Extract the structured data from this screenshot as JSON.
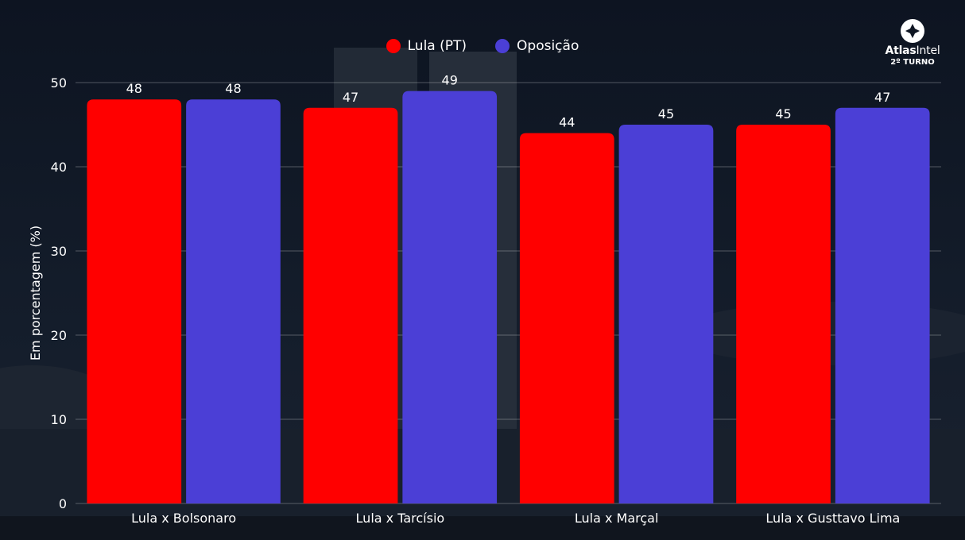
{
  "legend": [
    {
      "label": "Lula (PT)",
      "color": "#ff0000"
    },
    {
      "label": "Oposição",
      "color": "#4b3fd6"
    }
  ],
  "logo": {
    "name_bold": "Atlas",
    "name_light": "Intel",
    "subtitle": "2º TURNO"
  },
  "chart_data": {
    "type": "bar",
    "categories": [
      "Lula x Bolsonaro",
      "Lula x Tarcísio",
      "Lula x Marçal",
      "Lula x Gusttavo Lima"
    ],
    "series": [
      {
        "name": "Lula (PT)",
        "values": [
          48,
          47,
          44,
          45
        ],
        "color": "#ff0000"
      },
      {
        "name": "Oposição",
        "values": [
          48,
          49,
          45,
          47
        ],
        "color": "#4b3fd6"
      }
    ],
    "ylabel": "Em porcentagem (%)",
    "xlabel": "",
    "ylim": [
      0,
      50
    ],
    "yticks": [
      0,
      10,
      20,
      30,
      40,
      50
    ],
    "grid": true,
    "legend_position": "top-center"
  }
}
